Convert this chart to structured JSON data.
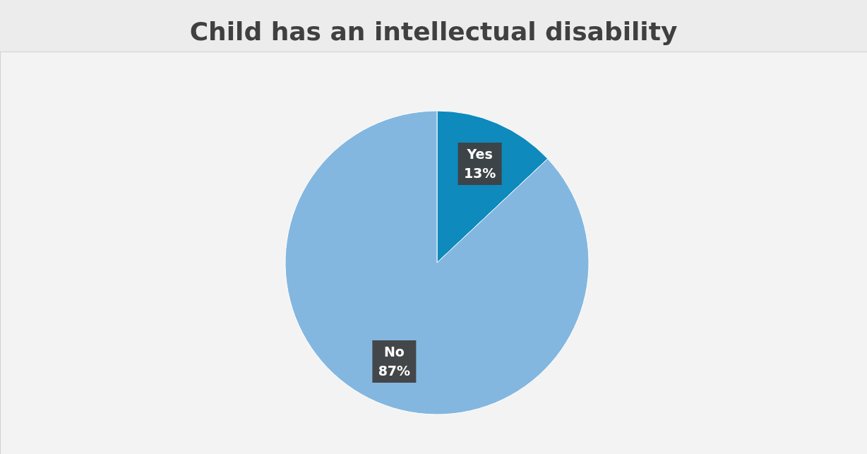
{
  "chart_data": {
    "type": "pie",
    "title": "Child has an intellectual disability",
    "categories": [
      "Yes",
      "No"
    ],
    "values": [
      13,
      87
    ],
    "colors": [
      "#0e8abd",
      "#83b7df"
    ],
    "value_labels": [
      "13%",
      "87%"
    ],
    "legend": false
  }
}
